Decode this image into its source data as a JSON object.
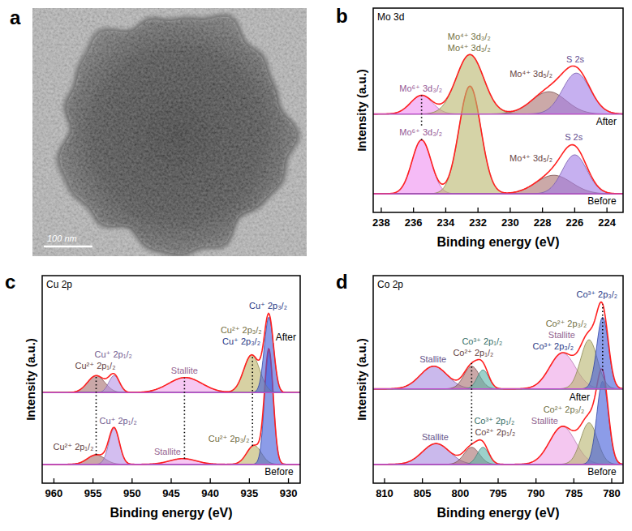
{
  "chart_data": [
    {
      "type": "image",
      "panel": "a",
      "scale_bar": "100 nm"
    },
    {
      "type": "line",
      "panel": "b",
      "title": "Mo 3d",
      "x_label": "Binding energy (eV)",
      "y_label": "Intensity (a.u.)",
      "xlim": [
        238.5,
        223
      ],
      "xticks": [
        238,
        236,
        234,
        232,
        230,
        228,
        226,
        224
      ],
      "ylim": [
        0,
        11
      ],
      "tick_labels": "x",
      "guides": [
        235.5
      ],
      "spectra": [
        {
          "name": "Before",
          "color": "#ff2020",
          "baseline": 1.0,
          "peaks": [
            {
              "name": "Mo⁶⁺ 3d₃/₂",
              "center": 235.5,
              "height": 2.9,
              "fwhm": 1.4,
              "color": "#ee8ef0"
            },
            {
              "name": "Mo⁴⁺ 3d₃/₂",
              "center": 232.5,
              "height": 5.8,
              "fwhm": 1.6,
              "color": "#b9b66c"
            },
            {
              "name": "Mo⁴⁺ 3d₅/₂",
              "center": 227.3,
              "height": 1.0,
              "fwhm": 2.6,
              "color": "#a8706e"
            },
            {
              "name": "S 2s",
              "center": 226.0,
              "height": 2.1,
              "fwhm": 1.8,
              "color": "#a07ce6"
            }
          ]
        },
        {
          "name": "After",
          "color": "#ff2020",
          "baseline": 5.3,
          "peaks": [
            {
              "name": "Mo⁶⁺ 3d₃/₂",
              "center": 235.5,
              "height": 1.0,
              "fwhm": 1.6,
              "color": "#ee8ef0"
            },
            {
              "name": "Mo⁴⁺ 3d₃/₂",
              "center": 232.5,
              "height": 3.2,
              "fwhm": 2.0,
              "color": "#b9b66c"
            },
            {
              "name": "Mo⁴⁺ 3d₅/₂",
              "center": 227.6,
              "height": 1.2,
              "fwhm": 2.5,
              "color": "#a8706e"
            },
            {
              "name": "S 2s",
              "center": 225.9,
              "height": 2.2,
              "fwhm": 2.0,
              "color": "#a07ce6"
            }
          ]
        }
      ]
    },
    {
      "type": "line",
      "panel": "c",
      "title": "Cu 2p",
      "x_label": "Binding energy (eV)",
      "y_label": "Intensity (a.u.)",
      "xlim": [
        961.5,
        928.5
      ],
      "xticks": [
        960,
        955,
        950,
        945,
        940,
        935,
        930
      ],
      "ylim": [
        0,
        11
      ],
      "tick_labels": "x",
      "guides": [
        954.6,
        943.3,
        934.6
      ],
      "spectra": [
        {
          "name": "Before",
          "color": "#ff2020",
          "baseline": 1.0,
          "peaks": [
            {
              "name": "Cu²⁺ 2p₁/₂",
              "center": 954.6,
              "height": 0.5,
              "fwhm": 2.6,
              "color": "#a66e6e"
            },
            {
              "name": "Cu⁺ 2p₁/₂",
              "center": 952.3,
              "height": 1.9,
              "fwhm": 1.6,
              "color": "#b692e6"
            },
            {
              "name": "Stallite",
              "center": 943.5,
              "height": 0.3,
              "fwhm": 4.0,
              "color": "#f0a2ea"
            },
            {
              "name": "Cu²⁺ 2p₃/₂",
              "center": 934.4,
              "height": 1.0,
              "fwhm": 2.2,
              "color": "#bcb266"
            },
            {
              "name": "Cu⁺ 2p₃/₂",
              "center": 932.5,
              "height": 6.0,
              "fwhm": 1.3,
              "color": "#3f5ad8"
            }
          ]
        },
        {
          "name": "After",
          "color": "#ff2020",
          "baseline": 4.8,
          "peaks": [
            {
              "name": "Cu²⁺ 2p₁/₂",
              "center": 954.6,
              "height": 0.9,
              "fwhm": 2.6,
              "color": "#a66e6e"
            },
            {
              "name": "Cu⁺ 2p₁/₂",
              "center": 952.3,
              "height": 0.9,
              "fwhm": 1.6,
              "color": "#b692e6"
            },
            {
              "name": "Stallite",
              "center": 943.2,
              "height": 0.8,
              "fwhm": 5.0,
              "color": "#f0a2ea"
            },
            {
              "name": "Cu²⁺ 2p₃/₂",
              "center": 934.7,
              "height": 2.0,
              "fwhm": 2.4,
              "color": "#bcb266"
            },
            {
              "name": "Cu⁺ 2p₃/₂",
              "center": 932.5,
              "height": 4.0,
              "fwhm": 1.4,
              "color": "#3f5ad8"
            }
          ]
        }
      ]
    },
    {
      "type": "line",
      "panel": "d",
      "title": "Co 2p",
      "x_label": "Binding energy (eV)",
      "y_label": "Intensity (a.u.)",
      "xlim": [
        811.5,
        778.5
      ],
      "xticks": [
        810,
        805,
        800,
        795,
        790,
        785,
        780
      ],
      "ylim": [
        0,
        11
      ],
      "tick_labels": "x",
      "guides": [
        798.5,
        781.2
      ],
      "spectra": [
        {
          "name": "Before",
          "color": "#ff2020",
          "baseline": 1.0,
          "peaks": [
            {
              "name": "Stallite",
              "center": 803.2,
              "height": 1.1,
              "fwhm": 4.2,
              "color": "#a68ae0"
            },
            {
              "name": "Co²⁺ 2p₁/₂",
              "center": 798.5,
              "height": 0.9,
              "fwhm": 2.4,
              "color": "#a66e6e"
            },
            {
              "name": "Co³⁺ 2p₁/₂",
              "center": 797.0,
              "height": 0.9,
              "fwhm": 1.8,
              "color": "#5ab3a8"
            },
            {
              "name": "Stallite",
              "center": 786.5,
              "height": 2.0,
              "fwhm": 4.0,
              "color": "#eca2e6"
            },
            {
              "name": "Co²⁺ 2p₃/₂",
              "center": 783.0,
              "height": 2.2,
              "fwhm": 2.6,
              "color": "#b8b46e"
            },
            {
              "name": "Co³⁺ 2p₃/₂",
              "center": 781.2,
              "height": 4.4,
              "fwhm": 1.8,
              "color": "#3f5ad8"
            }
          ]
        },
        {
          "name": "After",
          "color": "#ff2020",
          "baseline": 5.0,
          "peaks": [
            {
              "name": "Stallite",
              "center": 803.5,
              "height": 1.2,
              "fwhm": 4.2,
              "color": "#a68ae0"
            },
            {
              "name": "Co²⁺ 2p₁/₂",
              "center": 798.5,
              "height": 1.2,
              "fwhm": 2.4,
              "color": "#a66e6e"
            },
            {
              "name": "Co³⁺ 2p₁/₂",
              "center": 797.0,
              "height": 1.0,
              "fwhm": 1.8,
              "color": "#5ab3a8"
            },
            {
              "name": "Stallite",
              "center": 786.5,
              "height": 1.9,
              "fwhm": 4.0,
              "color": "#eca2e6"
            },
            {
              "name": "Co²⁺ 2p₃/₂",
              "center": 783.0,
              "height": 2.6,
              "fwhm": 2.6,
              "color": "#b8b46e"
            },
            {
              "name": "Co³⁺ 2p₃/₂",
              "center": 781.2,
              "height": 3.8,
              "fwhm": 1.8,
              "color": "#3f5ad8"
            }
          ]
        }
      ]
    }
  ]
}
